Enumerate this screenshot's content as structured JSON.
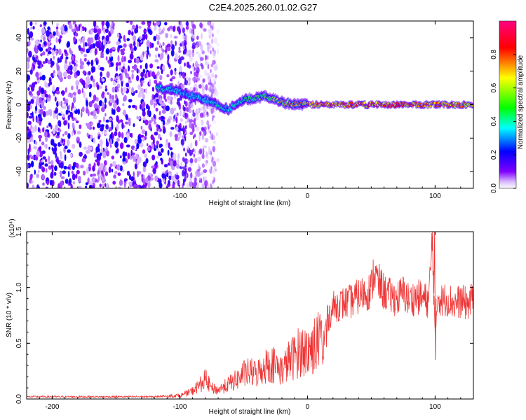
{
  "figure": {
    "title": "C2E4.2025.260.01.02.G27"
  },
  "chart_data": [
    {
      "type": "heatmap",
      "title": "C2E4.2025.260.01.02.G27",
      "xlabel": "Height of straight line (km)",
      "ylabel": "Frequency (Hz)",
      "xlim": [
        -220,
        130
      ],
      "ylim": [
        -50,
        50
      ],
      "xticks": [
        -200,
        -100,
        0,
        100
      ],
      "xtick_labels": [
        "-200",
        "-100",
        "0",
        "100"
      ],
      "yticks": [
        -40,
        -20,
        0,
        20,
        40
      ],
      "ytick_labels": [
        "-40",
        "-20",
        "0",
        "20",
        "40"
      ],
      "colorbar": {
        "label": "Normalized spectral amplitude",
        "range": [
          0.0,
          1.0
        ],
        "ticks": [
          0.0,
          0.2,
          0.4,
          0.6,
          0.8
        ],
        "tick_labels": [
          "0.0",
          "0.2",
          "0.4",
          "0.6",
          "0.8"
        ],
        "colors": [
          "#ffffff",
          "#7f00ff",
          "#0000ff",
          "#00ffff",
          "#00ff00",
          "#ffff00",
          "#ff0000",
          "#ff0080"
        ]
      },
      "noise_region_km": [
        -220,
        -95
      ],
      "signal_onset_km": -118,
      "signal_track": {
        "x": [
          -118,
          -105,
          -95,
          -85,
          -75,
          -68,
          -62,
          -55,
          -48,
          -40,
          -32,
          -25,
          -18,
          -10,
          0,
          20,
          60,
          100,
          130
        ],
        "freq": [
          10,
          9,
          6,
          4,
          2,
          -1,
          -3,
          1,
          3,
          4,
          5,
          3,
          1,
          0.5,
          0,
          0,
          0,
          0,
          0
        ],
        "amplitude": [
          0.45,
          0.4,
          0.35,
          0.4,
          0.45,
          0.45,
          0.4,
          0.45,
          0.5,
          0.55,
          0.6,
          0.7,
          0.75,
          0.8,
          0.85,
          0.9,
          0.9,
          0.85,
          0.8
        ]
      }
    },
    {
      "type": "line",
      "xlabel": "Height of straight line (km)",
      "ylabel": "SNR (10 * v/v)",
      "y_multiplier": "(x10⁴)",
      "xlim": [
        -220,
        130
      ],
      "ylim": [
        0.0,
        1.5
      ],
      "xticks": [
        -200,
        -100,
        0,
        100
      ],
      "xtick_labels": [
        "-200",
        "-100",
        "0",
        "100"
      ],
      "yticks": [
        0.0,
        0.5,
        1.0,
        1.5
      ],
      "ytick_labels": [
        "0.0",
        "0.5",
        "1.0",
        "1.5"
      ],
      "line_color": "#ee3333",
      "series": [
        {
          "name": "SNR",
          "x": [
            -220,
            -200,
            -180,
            -160,
            -140,
            -120,
            -110,
            -100,
            -95,
            -90,
            -85,
            -80,
            -75,
            -70,
            -65,
            -60,
            -55,
            -50,
            -45,
            -40,
            -35,
            -30,
            -25,
            -20,
            -15,
            -10,
            -5,
            0,
            5,
            10,
            15,
            20,
            25,
            30,
            35,
            40,
            45,
            50,
            52,
            55,
            60,
            65,
            70,
            75,
            80,
            85,
            90,
            95,
            98,
            100,
            102,
            105,
            110,
            115,
            120,
            125,
            130
          ],
          "y": [
            0.02,
            0.02,
            0.02,
            0.02,
            0.02,
            0.02,
            0.03,
            0.04,
            0.06,
            0.09,
            0.15,
            0.22,
            0.12,
            0.1,
            0.14,
            0.18,
            0.22,
            0.28,
            0.3,
            0.28,
            0.35,
            0.4,
            0.38,
            0.32,
            0.42,
            0.48,
            0.55,
            0.52,
            0.6,
            0.65,
            0.7,
            0.82,
            0.85,
            0.86,
            0.88,
            0.92,
            0.95,
            0.98,
            1.15,
            1.05,
            0.96,
            0.92,
            0.9,
            0.95,
            0.88,
            0.92,
            0.9,
            0.88,
            1.45,
            0.5,
            0.95,
            0.88,
            0.9,
            0.85,
            0.88,
            0.85,
            0.9
          ]
        }
      ]
    }
  ]
}
